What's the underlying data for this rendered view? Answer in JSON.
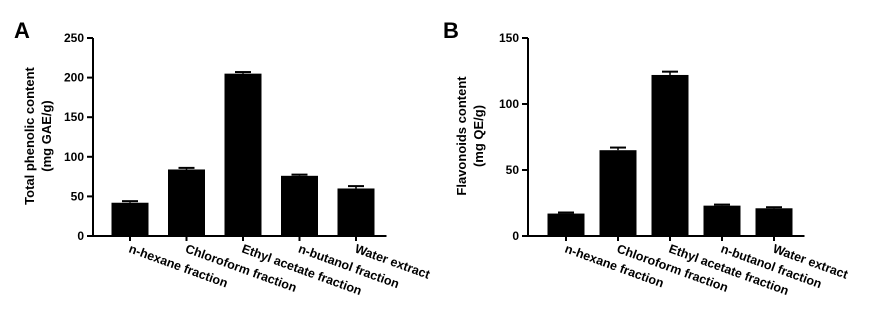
{
  "chart_data": [
    {
      "type": "bar",
      "panel": "A",
      "title": "",
      "xlabel": "",
      "ylabel_lines": [
        "Total phenolic content",
        "(mg GAE/g)"
      ],
      "ylim": [
        0,
        250
      ],
      "yticks": [
        0,
        50,
        100,
        150,
        200,
        250
      ],
      "categories": [
        "n-hexane fraction",
        "Chloroform fraction",
        "Ethyl acetate fraction",
        "n-butanol fraction",
        "Water extract"
      ],
      "values": [
        42,
        84,
        205,
        76,
        60
      ],
      "errors": [
        2,
        2,
        2,
        1.5,
        3
      ],
      "bar_color": "#000000",
      "grid": false,
      "legend": "none"
    },
    {
      "type": "bar",
      "panel": "B",
      "title": "",
      "xlabel": "",
      "ylabel_lines": [
        "Flavonoids content",
        "(mg QE/g)"
      ],
      "ylim": [
        0,
        150
      ],
      "yticks": [
        0,
        50,
        100,
        150
      ],
      "categories": [
        "n-hexane fraction",
        "Chloroform fraction",
        "Ethyl acetate fraction",
        "n-butanol fraction",
        "Water extract"
      ],
      "values": [
        17,
        65,
        122,
        23,
        21
      ],
      "errors": [
        0.8,
        2,
        2.5,
        0.8,
        0.8
      ],
      "bar_color": "#000000",
      "grid": false,
      "legend": "none"
    }
  ]
}
